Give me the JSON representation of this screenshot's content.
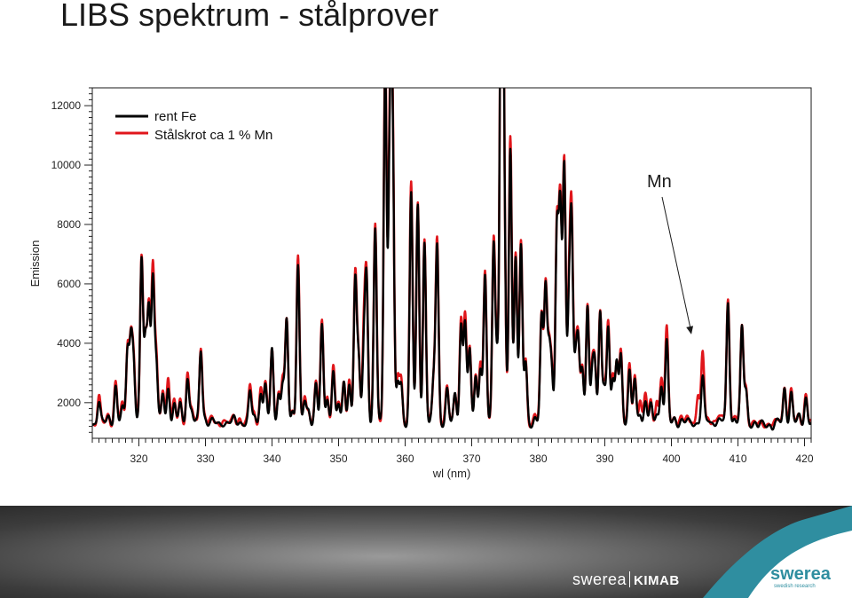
{
  "slide": {
    "title": "LIBS spektrum - stålprover"
  },
  "chart_data": {
    "type": "line",
    "xlabel": "wl (nm)",
    "ylabel": "Emission",
    "xlim": [
      313,
      421
    ],
    "ylim": [
      800,
      12600
    ],
    "x_ticks": [
      320,
      330,
      340,
      350,
      360,
      370,
      380,
      390,
      400,
      410,
      420
    ],
    "y_ticks": [
      2000,
      4000,
      6000,
      8000,
      10000,
      12000
    ],
    "grid": false,
    "legend": "top-left",
    "annotation": {
      "text": "Mn",
      "points_to_x": 403.0,
      "points_to_y": 4300
    },
    "baseline": 1300,
    "series": [
      {
        "name": "rent Fe",
        "color": "#000000",
        "peaks": [
          [
            314.0,
            2100
          ],
          [
            315.4,
            1500
          ],
          [
            316.5,
            2600
          ],
          [
            317.5,
            1800
          ],
          [
            318.3,
            3800
          ],
          [
            318.8,
            3950
          ],
          [
            319.2,
            3300
          ],
          [
            320.4,
            6800
          ],
          [
            321.0,
            4000
          ],
          [
            321.5,
            5200
          ],
          [
            322.1,
            6100
          ],
          [
            322.6,
            3300
          ],
          [
            323.6,
            2300
          ],
          [
            324.4,
            2500
          ],
          [
            325.3,
            1900
          ],
          [
            326.2,
            2000
          ],
          [
            327.3,
            2900
          ],
          [
            327.9,
            1700
          ],
          [
            329.3,
            3800
          ],
          [
            329.9,
            1500
          ],
          [
            331.0,
            1350
          ],
          [
            332.6,
            1350
          ],
          [
            334.3,
            1450
          ],
          [
            335.1,
            1400
          ],
          [
            336.7,
            2300
          ],
          [
            337.3,
            1550
          ],
          [
            338.3,
            2400
          ],
          [
            339.0,
            2600
          ],
          [
            340.0,
            3800
          ],
          [
            341.0,
            2300
          ],
          [
            341.6,
            2600
          ],
          [
            342.2,
            4700
          ],
          [
            343.1,
            1700
          ],
          [
            343.9,
            6700
          ],
          [
            344.9,
            2000
          ],
          [
            345.5,
            1700
          ],
          [
            346.6,
            2700
          ],
          [
            347.5,
            4500
          ],
          [
            348.3,
            2100
          ],
          [
            349.2,
            3200
          ],
          [
            350.0,
            1900
          ],
          [
            350.8,
            2600
          ],
          [
            351.6,
            2700
          ],
          [
            352.5,
            6200
          ],
          [
            353.0,
            3300
          ],
          [
            353.8,
            3700
          ],
          [
            354.2,
            6000
          ],
          [
            355.5,
            7800
          ],
          [
            357.0,
            13400
          ],
          [
            357.7,
            10300
          ],
          [
            358.1,
            11000
          ],
          [
            358.9,
            2600
          ],
          [
            359.4,
            2600
          ],
          [
            360.9,
            9000
          ],
          [
            361.9,
            8600
          ],
          [
            362.9,
            7400
          ],
          [
            364.3,
            2700
          ],
          [
            364.8,
            7300
          ],
          [
            366.3,
            2400
          ],
          [
            367.5,
            2300
          ],
          [
            368.4,
            4600
          ],
          [
            369.0,
            4700
          ],
          [
            369.7,
            3700
          ],
          [
            370.6,
            2900
          ],
          [
            371.3,
            3200
          ],
          [
            372.0,
            6200
          ],
          [
            373.3,
            7400
          ],
          [
            373.8,
            3300
          ],
          [
            374.4,
            12600
          ],
          [
            374.6,
            12400
          ],
          [
            374.9,
            6200
          ],
          [
            375.8,
            10600
          ],
          [
            376.6,
            7000
          ],
          [
            377.4,
            7200
          ],
          [
            378.1,
            3300
          ],
          [
            379.5,
            1500
          ],
          [
            380.5,
            4800
          ],
          [
            381.1,
            5900
          ],
          [
            381.6,
            3600
          ],
          [
            382.0,
            3100
          ],
          [
            382.8,
            7600
          ],
          [
            383.3,
            8400
          ],
          [
            383.9,
            9900
          ],
          [
            384.6,
            5000
          ],
          [
            385.0,
            7800
          ],
          [
            385.6,
            3200
          ],
          [
            386.0,
            3800
          ],
          [
            386.6,
            3200
          ],
          [
            387.4,
            5300
          ],
          [
            388.1,
            2900
          ],
          [
            388.5,
            3100
          ],
          [
            389.3,
            5000
          ],
          [
            389.9,
            2600
          ],
          [
            390.5,
            4500
          ],
          [
            391.2,
            2700
          ],
          [
            391.8,
            3300
          ],
          [
            392.4,
            3700
          ],
          [
            393.7,
            3000
          ],
          [
            394.5,
            2800
          ],
          [
            395.3,
            1700
          ],
          [
            396.1,
            2000
          ],
          [
            396.9,
            1900
          ],
          [
            397.8,
            1700
          ],
          [
            398.5,
            2600
          ],
          [
            399.3,
            4000
          ],
          [
            400.5,
            1500
          ],
          [
            401.5,
            1400
          ],
          [
            402.4,
            1350
          ],
          [
            403.0,
            1350
          ],
          [
            404.0,
            1350
          ],
          [
            404.7,
            2800
          ],
          [
            405.4,
            1400
          ],
          [
            406.3,
            1400
          ],
          [
            407.2,
            1400
          ],
          [
            407.6,
            1350
          ],
          [
            408.5,
            5400
          ],
          [
            409.5,
            1500
          ],
          [
            410.6,
            4500
          ],
          [
            411.2,
            2400
          ],
          [
            413.0,
            1150
          ],
          [
            415.2,
            1150
          ],
          [
            416.2,
            1350
          ],
          [
            417.0,
            2500
          ],
          [
            418.0,
            2300
          ],
          [
            419.2,
            1550
          ],
          [
            420.2,
            2200
          ]
        ]
      },
      {
        "name": "Stålskrot ca 1 % Mn",
        "color": "#e0161b",
        "peaks": [
          [
            314.0,
            2200
          ],
          [
            315.4,
            1600
          ],
          [
            316.5,
            2700
          ],
          [
            317.5,
            1900
          ],
          [
            318.3,
            3900
          ],
          [
            318.8,
            4000
          ],
          [
            319.2,
            3400
          ],
          [
            320.4,
            6900
          ],
          [
            321.0,
            4100
          ],
          [
            321.5,
            5300
          ],
          [
            322.1,
            6500
          ],
          [
            322.6,
            3500
          ],
          [
            323.6,
            2500
          ],
          [
            324.4,
            2900
          ],
          [
            325.3,
            2000
          ],
          [
            326.2,
            2100
          ],
          [
            327.3,
            3000
          ],
          [
            327.9,
            1800
          ],
          [
            329.3,
            3900
          ],
          [
            329.9,
            1600
          ],
          [
            331.0,
            1450
          ],
          [
            332.6,
            1450
          ],
          [
            334.3,
            1550
          ],
          [
            335.1,
            1500
          ],
          [
            336.7,
            2600
          ],
          [
            337.3,
            1650
          ],
          [
            338.3,
            2500
          ],
          [
            339.0,
            2700
          ],
          [
            340.0,
            3900
          ],
          [
            341.0,
            2400
          ],
          [
            341.6,
            2700
          ],
          [
            342.2,
            4800
          ],
          [
            343.1,
            1800
          ],
          [
            343.9,
            6900
          ],
          [
            344.9,
            2100
          ],
          [
            345.5,
            1800
          ],
          [
            346.6,
            2800
          ],
          [
            347.5,
            4700
          ],
          [
            348.3,
            2200
          ],
          [
            349.2,
            3300
          ],
          [
            350.0,
            2000
          ],
          [
            350.8,
            2700
          ],
          [
            351.6,
            2800
          ],
          [
            352.5,
            6300
          ],
          [
            353.0,
            3400
          ],
          [
            353.8,
            4300
          ],
          [
            354.2,
            6100
          ],
          [
            355.5,
            8000
          ],
          [
            357.0,
            13900
          ],
          [
            357.7,
            10900
          ],
          [
            358.1,
            11200
          ],
          [
            358.9,
            2900
          ],
          [
            359.4,
            2800
          ],
          [
            360.9,
            9400
          ],
          [
            361.9,
            8800
          ],
          [
            362.9,
            7500
          ],
          [
            364.3,
            2800
          ],
          [
            364.8,
            7500
          ],
          [
            366.3,
            2500
          ],
          [
            367.5,
            2400
          ],
          [
            368.4,
            4800
          ],
          [
            369.0,
            4900
          ],
          [
            369.7,
            3900
          ],
          [
            370.6,
            3000
          ],
          [
            371.3,
            3300
          ],
          [
            372.0,
            6400
          ],
          [
            373.3,
            7600
          ],
          [
            373.8,
            3400
          ],
          [
            374.4,
            12500
          ],
          [
            374.6,
            12300
          ],
          [
            374.9,
            6400
          ],
          [
            375.8,
            11000
          ],
          [
            376.6,
            7100
          ],
          [
            377.4,
            7400
          ],
          [
            378.1,
            3400
          ],
          [
            379.5,
            1600
          ],
          [
            380.5,
            4900
          ],
          [
            381.1,
            6000
          ],
          [
            381.6,
            3700
          ],
          [
            382.0,
            3200
          ],
          [
            382.8,
            7800
          ],
          [
            383.3,
            8600
          ],
          [
            383.9,
            10200
          ],
          [
            384.6,
            5300
          ],
          [
            385.0,
            8100
          ],
          [
            385.6,
            3300
          ],
          [
            386.0,
            3900
          ],
          [
            386.6,
            3300
          ],
          [
            387.4,
            5400
          ],
          [
            388.1,
            3000
          ],
          [
            388.5,
            3200
          ],
          [
            389.3,
            5100
          ],
          [
            389.9,
            2700
          ],
          [
            390.5,
            4700
          ],
          [
            391.2,
            2800
          ],
          [
            391.8,
            3400
          ],
          [
            392.4,
            3800
          ],
          [
            393.7,
            3200
          ],
          [
            394.5,
            2900
          ],
          [
            395.3,
            2200
          ],
          [
            396.1,
            2300
          ],
          [
            396.9,
            2000
          ],
          [
            397.8,
            2100
          ],
          [
            398.5,
            2900
          ],
          [
            399.3,
            4500
          ],
          [
            400.5,
            1600
          ],
          [
            401.5,
            1500
          ],
          [
            402.4,
            1450
          ],
          [
            403.0,
            1450
          ],
          [
            404.0,
            2300
          ],
          [
            404.7,
            3600
          ],
          [
            405.4,
            1500
          ],
          [
            406.3,
            1500
          ],
          [
            407.2,
            1500
          ],
          [
            407.6,
            1450
          ],
          [
            408.5,
            5600
          ],
          [
            409.5,
            1600
          ],
          [
            410.6,
            4600
          ],
          [
            411.2,
            2500
          ],
          [
            413.0,
            1250
          ],
          [
            415.2,
            1250
          ],
          [
            416.2,
            1450
          ],
          [
            417.0,
            2600
          ],
          [
            418.0,
            2400
          ],
          [
            419.2,
            1650
          ],
          [
            420.2,
            2300
          ]
        ]
      }
    ]
  },
  "footer": {
    "kimab_logo_left": "swerea",
    "kimab_logo_right": "KIMAB",
    "swerea_logo": "swerea",
    "swerea_tagline": "swedish research"
  }
}
